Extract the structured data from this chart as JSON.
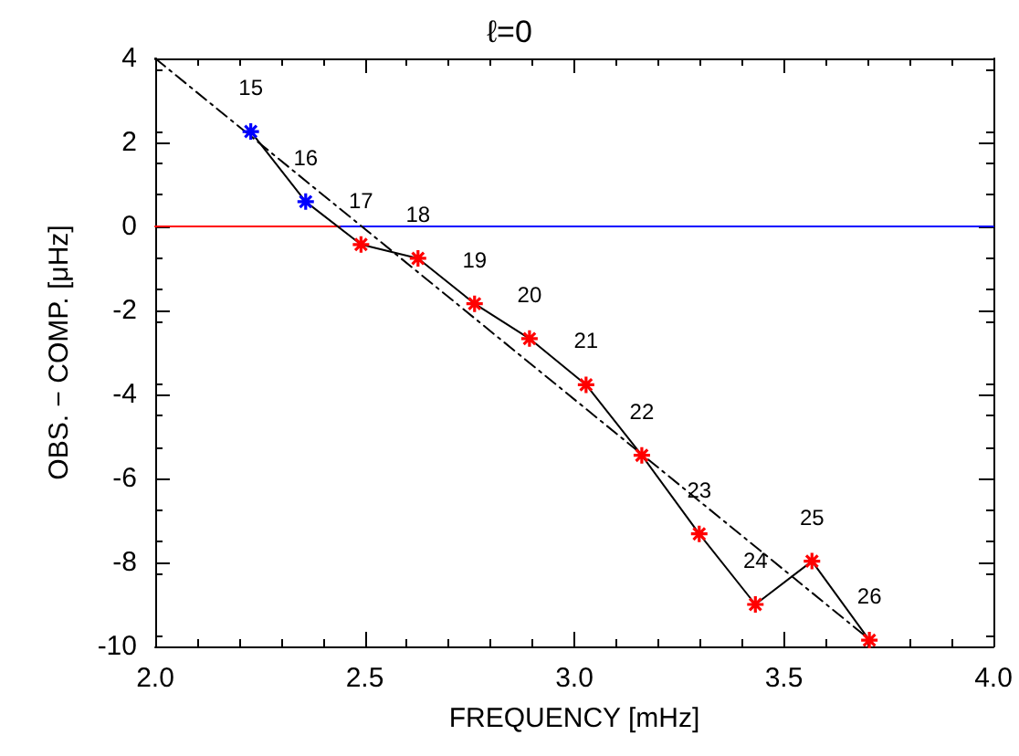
{
  "chart_data": {
    "type": "line",
    "title": "ℓ=0",
    "xlabel": "FREQUENCY [mHz]",
    "ylabel": "OBS. − COMP. [μHz]",
    "xlim": [
      2.0,
      4.0
    ],
    "xticks": [
      {
        "value": 2.0,
        "label": "2.0"
      },
      2.5,
      {
        "value": 3.0,
        "label": "3.0"
      },
      3.5,
      {
        "value": 4.0,
        "label": "4.0"
      }
    ],
    "ylim": [
      -10,
      4
    ],
    "yticks": [
      -10,
      -8,
      -6,
      -4,
      -2,
      0,
      2,
      4
    ],
    "grid": false,
    "series": [
      {
        "color": "#ff0000",
        "marker": "none",
        "line_style": "solid",
        "x": [
          2.0,
          2.443
        ],
        "values": [
          0,
          0
        ]
      },
      {
        "color": "#0000ff",
        "marker": "none",
        "line_style": "solid",
        "x": [
          2.443,
          4.0
        ],
        "values": [
          0,
          0
        ]
      },
      {
        "color": "#000000",
        "marker": "none",
        "line_style": "dashed",
        "x": [
          2.0,
          3.7
        ],
        "values": [
          4.0,
          -9.8
        ]
      },
      {
        "color": "#000000",
        "marker": "cross",
        "line_style": "solid",
        "x": [
          2.228,
          2.359,
          2.491,
          2.627,
          2.762,
          2.893,
          3.028,
          3.161,
          3.298,
          3.432,
          3.567,
          3.704
        ],
        "values": [
          2.26,
          0.59,
          -0.43,
          -0.76,
          -1.84,
          -2.67,
          -3.77,
          -5.45,
          -7.32,
          -9.0,
          -7.97,
          -9.85
        ],
        "colors": [
          "#0000ff",
          "#0000ff",
          "#ff0000",
          "#ff0000",
          "#ff0000",
          "#ff0000",
          "#ff0000",
          "#ff0000",
          "#ff0000",
          "#ff0000",
          "#ff0000",
          "#ff0000"
        ]
      }
    ],
    "annotations": [
      {
        "text": "15",
        "x": 2.228,
        "y": 2.26
      },
      {
        "text": "16",
        "x": 2.359,
        "y": 0.59
      },
      {
        "text": "17",
        "x": 2.491,
        "y": -0.43
      },
      {
        "text": "18",
        "x": 2.627,
        "y": -0.76
      },
      {
        "text": "19",
        "x": 2.762,
        "y": -1.84
      },
      {
        "text": "20",
        "x": 2.893,
        "y": -2.67
      },
      {
        "text": "21",
        "x": 3.028,
        "y": -3.77
      },
      {
        "text": "22",
        "x": 3.161,
        "y": -5.45
      },
      {
        "text": "23",
        "x": 3.298,
        "y": -7.32
      },
      {
        "text": "24",
        "x": 3.432,
        "y": -9.0
      },
      {
        "text": "25",
        "x": 3.567,
        "y": -7.97
      },
      {
        "text": "26",
        "x": 3.704,
        "y": -9.85
      }
    ]
  }
}
